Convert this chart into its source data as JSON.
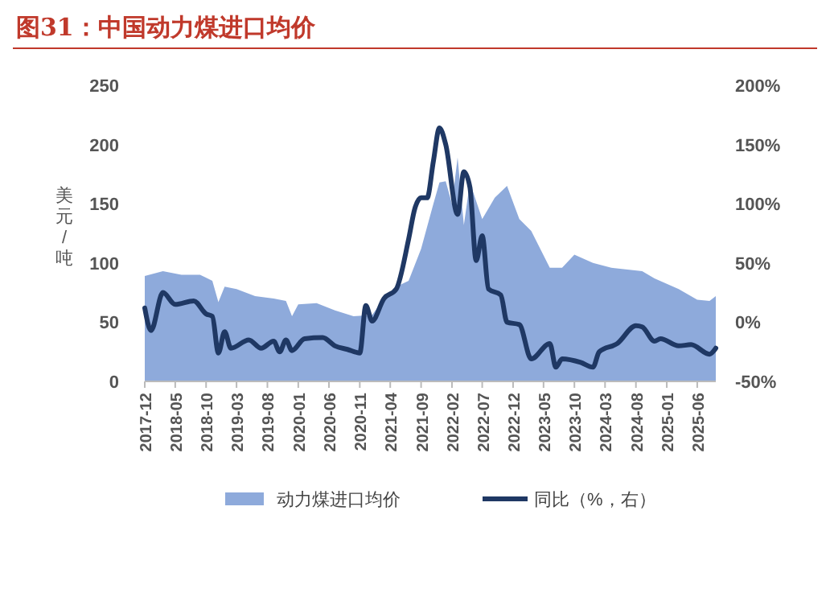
{
  "chart_data": {
    "type": "area",
    "title": "图31：中国动力煤进口均价",
    "ylabel": "美元/吨",
    "xlim": [
      "2017-12",
      "2025-09"
    ],
    "xticks": [
      "2017-12",
      "2018-05",
      "2018-10",
      "2019-03",
      "2019-08",
      "2020-01",
      "2020-06",
      "2020-11",
      "2021-04",
      "2021-09",
      "2022-02",
      "2022-07",
      "2022-12",
      "2023-05",
      "2023-10",
      "2024-03",
      "2024-08",
      "2025-01",
      "2025-06"
    ],
    "ylim": [
      0,
      250
    ],
    "yticks": [
      0,
      50,
      100,
      150,
      200,
      250
    ],
    "y2lim": [
      -50,
      200
    ],
    "y2ticks": [
      {
        "value": -50,
        "label": "-50%"
      },
      {
        "value": 0,
        "label": "0%"
      },
      {
        "value": 50,
        "label": "50%"
      },
      {
        "value": 100,
        "label": "100%"
      },
      {
        "value": 150,
        "label": "150%"
      },
      {
        "value": 200,
        "label": "200%"
      }
    ],
    "legend": "bottom",
    "grid": false,
    "series": [
      {
        "name": "动力煤进口均价",
        "color": "#8eaadb",
        "x": [
          "2017-12",
          "2018-03",
          "2018-06",
          "2018-09",
          "2018-11",
          "2018-12",
          "2019-01",
          "2019-03",
          "2019-06",
          "2019-09",
          "2019-11",
          "2019-12",
          "2020-01",
          "2020-04",
          "2020-07",
          "2020-10",
          "2021-01",
          "2021-03",
          "2021-05",
          "2021-07",
          "2021-09",
          "2021-11",
          "2021-12",
          "2022-01",
          "2022-02",
          "2022-03",
          "2022-04",
          "2022-05",
          "2022-07",
          "2022-09",
          "2022-11",
          "2023-01",
          "2023-03",
          "2023-06",
          "2023-08",
          "2023-10",
          "2024-01",
          "2024-04",
          "2024-09",
          "2024-11",
          "2025-03",
          "2025-06",
          "2025-08",
          "2025-09"
        ],
        "values": [
          89,
          93,
          90,
          90,
          85,
          67,
          80,
          78,
          72,
          70,
          68,
          55,
          65,
          66,
          60,
          55,
          56,
          70,
          80,
          85,
          112,
          150,
          168,
          169,
          150,
          189,
          132,
          168,
          137,
          155,
          165,
          137,
          127,
          96,
          96,
          107,
          100,
          96,
          93,
          87,
          78,
          69,
          68,
          72
        ]
      },
      {
        "name": "同比（%，右）",
        "type": "line",
        "axis": "y2",
        "color": "#1f3864",
        "x": [
          "2017-12",
          "2018-01",
          "2018-03",
          "2018-05",
          "2018-08",
          "2018-10",
          "2018-11",
          "2018-12",
          "2019-01",
          "2019-02",
          "2019-05",
          "2019-07",
          "2019-09",
          "2019-10",
          "2019-11",
          "2019-12",
          "2020-02",
          "2020-05",
          "2020-07",
          "2020-09",
          "2020-11",
          "2020-12",
          "2021-01",
          "2021-03",
          "2021-05",
          "2021-07",
          "2021-08",
          "2021-09",
          "2021-10",
          "2021-11",
          "2021-12",
          "2022-01",
          "2022-03",
          "2022-04",
          "2022-05",
          "2022-06",
          "2022-07",
          "2022-08",
          "2022-10",
          "2022-11",
          "2023-01",
          "2023-03",
          "2023-06",
          "2023-07",
          "2023-08",
          "2023-11",
          "2024-01",
          "2024-02",
          "2024-05",
          "2024-08",
          "2024-09",
          "2024-11",
          "2024-12",
          "2025-03",
          "2025-05",
          "2025-08",
          "2025-09"
        ],
        "values": [
          12,
          -7,
          25,
          15,
          18,
          7,
          5,
          -26,
          -8,
          -22,
          -15,
          -22,
          -16,
          -25,
          -15,
          -24,
          -14,
          -13,
          -20,
          -23,
          -26,
          14,
          1,
          20,
          28,
          70,
          96,
          105,
          105,
          136,
          164,
          150,
          91,
          127,
          114,
          52,
          73,
          28,
          23,
          0,
          -2,
          -31,
          -18,
          -38,
          -31,
          -34,
          -38,
          -25,
          -18,
          -3,
          -4,
          -16,
          -14,
          -20,
          -19,
          -27,
          -22
        ]
      }
    ]
  }
}
